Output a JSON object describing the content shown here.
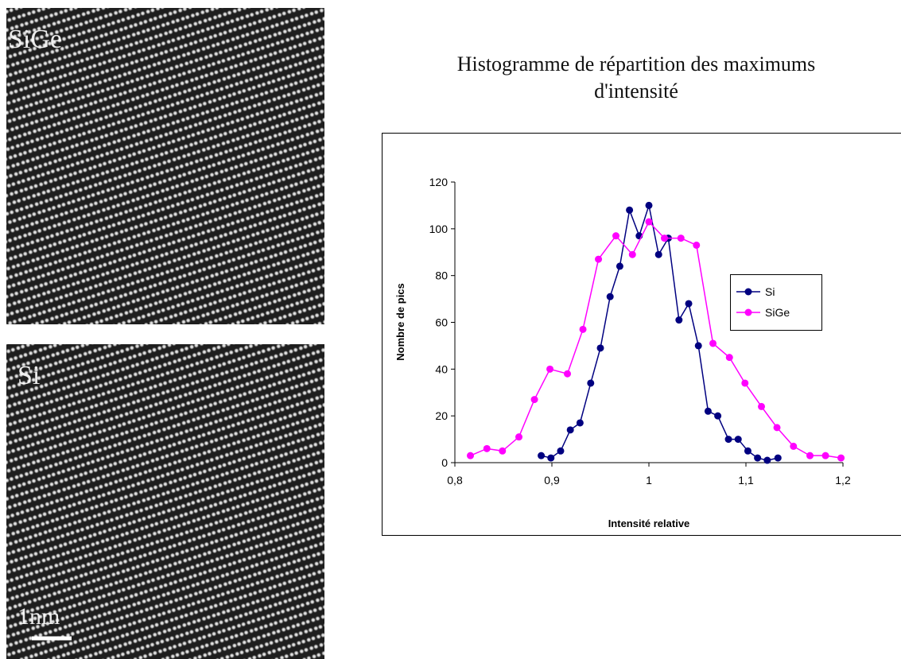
{
  "images": [
    {
      "label": "SiGe"
    },
    {
      "label": "Si",
      "scale_label": "1nm"
    }
  ],
  "chart_data": {
    "type": "line",
    "title": "Histogramme de répartition des maximums d'intensité",
    "x_label": "Intensité relative",
    "y_label": "Nombre de pics",
    "xlim": [
      0.8,
      1.2
    ],
    "xticks": [
      {
        "value": 0.8,
        "label": "0,8"
      },
      {
        "value": 0.9,
        "label": "0,9"
      },
      1,
      {
        "value": 1.1,
        "label": "1,1"
      },
      {
        "value": 1.2,
        "label": "1,2"
      }
    ],
    "ylim": [
      0,
      120
    ],
    "yticks": [
      0,
      20,
      40,
      60,
      80,
      100,
      120
    ],
    "legend": "right",
    "series": [
      {
        "name": "Si",
        "color": "#000080",
        "x": [
          0.889,
          0.899,
          0.909,
          0.919,
          0.929,
          0.94,
          0.95,
          0.96,
          0.97,
          0.98,
          0.99,
          1.0,
          1.01,
          1.02,
          1.031,
          1.041,
          1.051,
          1.061,
          1.071,
          1.082,
          1.092,
          1.102,
          1.112,
          1.122,
          1.133
        ],
        "values": [
          3,
          2,
          5,
          14,
          17,
          34,
          49,
          71,
          84,
          108,
          97,
          110,
          89,
          96,
          61,
          68,
          50,
          22,
          20,
          10,
          10,
          5,
          2,
          1,
          2
        ]
      },
      {
        "name": "SiGe",
        "color": "#ff00ff",
        "x": [
          0.816,
          0.833,
          0.849,
          0.866,
          0.882,
          0.898,
          0.916,
          0.932,
          0.948,
          0.966,
          0.983,
          1.0,
          1.016,
          1.033,
          1.049,
          1.066,
          1.083,
          1.099,
          1.116,
          1.132,
          1.149,
          1.166,
          1.182,
          1.198
        ],
        "values": [
          3,
          6,
          5,
          11,
          27,
          40,
          38,
          57,
          87,
          97,
          89,
          103,
          96,
          96,
          93,
          51,
          45,
          34,
          24,
          15,
          7,
          3,
          3,
          2
        ]
      }
    ]
  }
}
